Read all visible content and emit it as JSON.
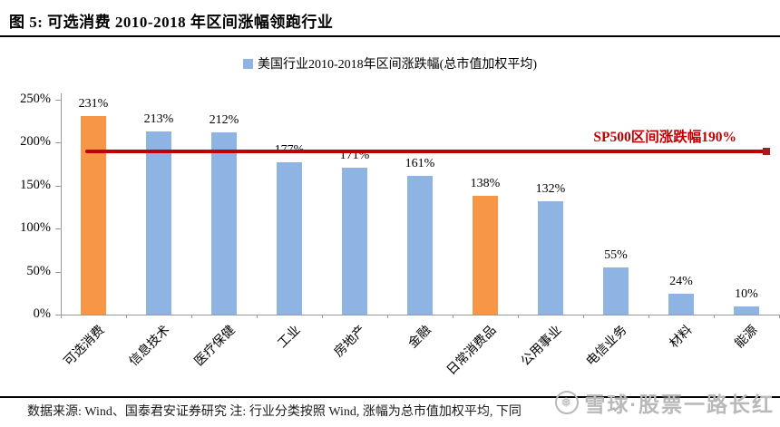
{
  "header": {
    "figure_label": "图 5:",
    "title": "图 5: 可选消费 2010-2018 年区间涨幅领跑行业"
  },
  "chart_data": {
    "type": "bar",
    "title": "可选消费 2010-2018 年区间涨幅领跑行业",
    "series_name": "美国行业2010-2018年区间涨跌幅(总市值加权平均)",
    "categories": [
      "可选消费",
      "信息技术",
      "医疗保健",
      "工业",
      "房地产",
      "金融",
      "日常消费品",
      "公用事业",
      "电信业务",
      "材料",
      "能源"
    ],
    "values": [
      231,
      213,
      212,
      177,
      171,
      161,
      138,
      132,
      55,
      24,
      10
    ],
    "unit": "%",
    "xlabel": "",
    "ylabel": "",
    "ylim": [
      0,
      250
    ],
    "y_ticks": [
      0,
      50,
      100,
      150,
      200,
      250
    ],
    "grid": false,
    "legend_position": "top",
    "bar_color": "#8DB4E2",
    "highlight_color": "#F79646",
    "highlight_indices": [
      0,
      6
    ],
    "axis_color": "#999999",
    "reference_line": {
      "value": 190,
      "label": "SP500区间涨跌幅190%",
      "color": "#C00000"
    }
  },
  "footer": {
    "source_note": "数据来源: Wind、国泰君安证券研究  注: 行业分类按照 Wind, 涨幅为总市值加权平均, 下同"
  },
  "watermark": {
    "icon": "snowball-icon",
    "icon_glyph": "❅",
    "text": "雪球·股票一路长红"
  }
}
